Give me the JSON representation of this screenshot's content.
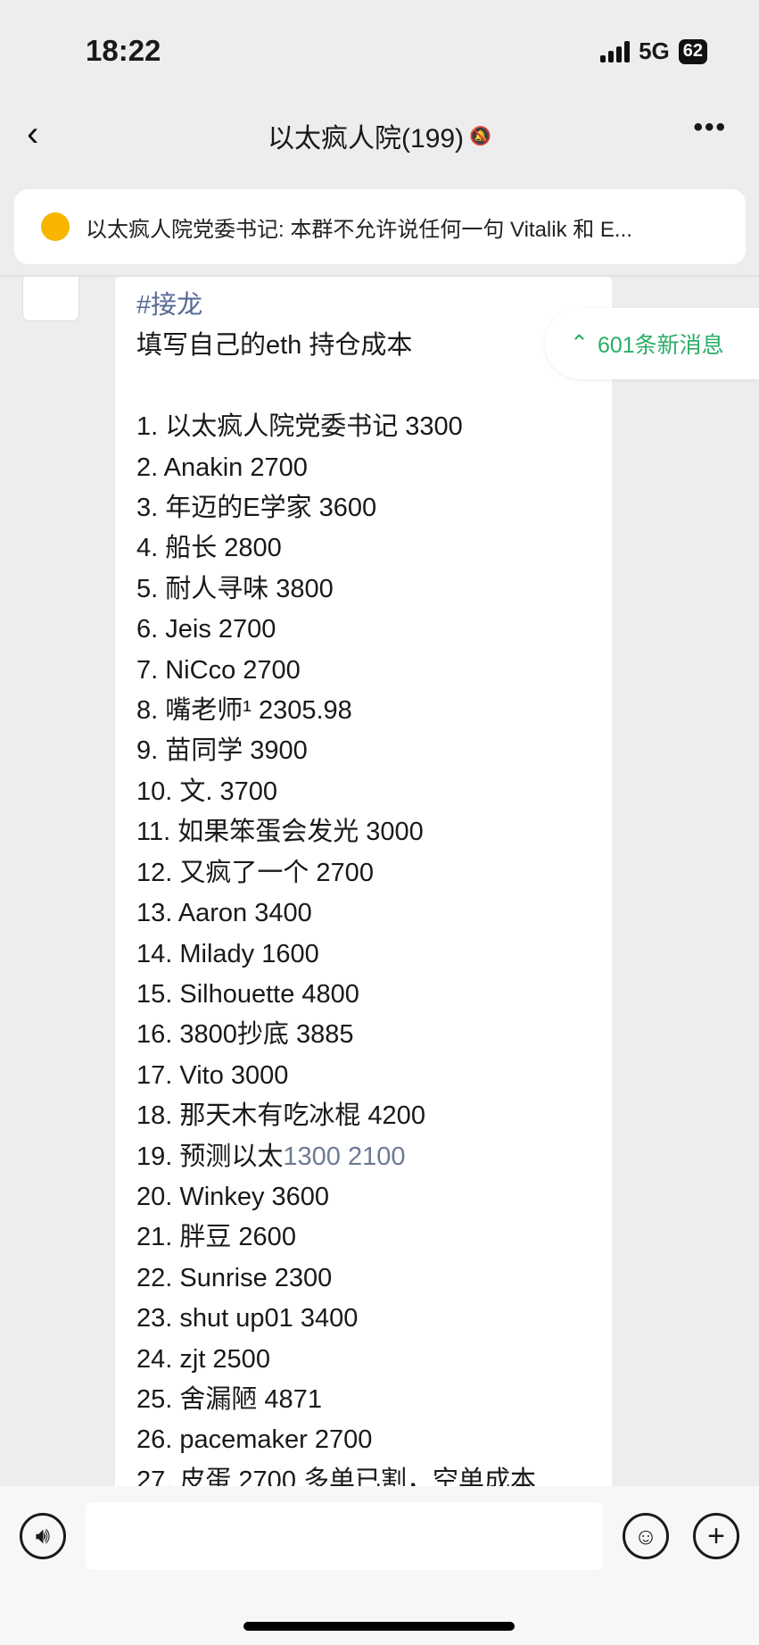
{
  "status": {
    "time": "18:22",
    "network": "5G",
    "battery": "62"
  },
  "nav": {
    "back": "‹",
    "title": "以太疯人院(199)",
    "mute_icon": "bell-slash",
    "more": "•••"
  },
  "pinned": {
    "text": "以太疯人院党委书记: 本群不允许说任何一句 Vitalik 和 E..."
  },
  "message": {
    "tag": "#接龙",
    "prompt": "填写自己的eth 持仓成本",
    "entries": [
      "1. 以太疯人院党委书记  3300",
      "2. Anakin 2700",
      "3. 年迈的E学家 3600",
      "4. 船长 2800",
      "5. 耐人寻味 3800",
      "6. Jeis 2700",
      "7. NiCco 2700",
      "8. 嘴老师¹ 2305.98",
      "9. 苗同学 3900",
      "10. 文. 3700",
      "11. 如果笨蛋会发光 3000",
      "12. 又疯了一个 2700",
      "13. Aaron 3400",
      "14. Milady 1600",
      "15. Silhouette 4800",
      "16. 3800抄底 3885",
      "17. Vito 3000",
      "18. 那天木有吃冰棍 4200",
      "19. 预测以太",
      "20. Winkey 3600",
      "21. 胖豆 2600",
      "22. Sunrise  2300",
      "23. shut up01 3400",
      "24. zjt 2500",
      "25. 舍漏陋 4871",
      "26. pacemaker 2700",
      "27. 皮蛋 2700 多单已割，空单成本"
    ],
    "entry19_link": "1300 2100"
  },
  "new_messages": {
    "label": "601条新消息",
    "color": "#2aae67"
  },
  "input": {
    "placeholder": ""
  },
  "colors": {
    "tag": "#576b95",
    "accent_yellow": "#f7b500"
  }
}
